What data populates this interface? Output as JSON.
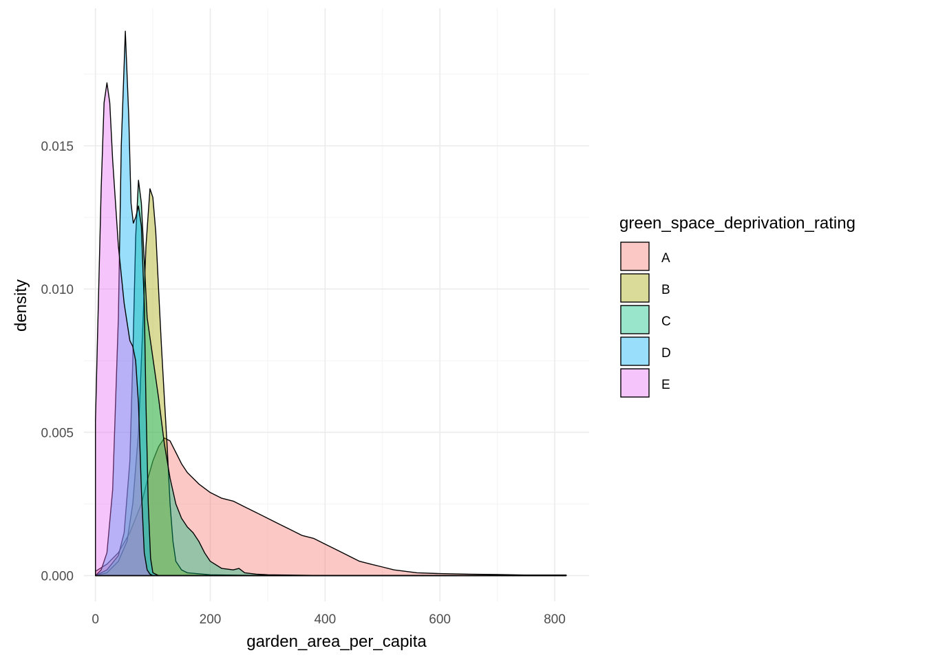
{
  "chart_data": {
    "type": "area",
    "subtype": "density",
    "title": "",
    "xlabel": "garden_area_per_capita",
    "ylabel": "density",
    "xlim": [
      -20,
      860
    ],
    "ylim": [
      -0.0009,
      0.0198
    ],
    "x_ticks": [
      0,
      200,
      400,
      600,
      800
    ],
    "x_tick_labels": [
      "0",
      "200",
      "400",
      "600",
      "800"
    ],
    "y_ticks": [
      0,
      0.005,
      0.01,
      0.015
    ],
    "y_tick_labels": [
      "0.000",
      "0.005",
      "0.010",
      "0.015"
    ],
    "grid": true,
    "legend": {
      "title": "green_space_deprivation_rating",
      "position": "right",
      "entries": [
        "A",
        "B",
        "C",
        "D",
        "E"
      ]
    },
    "series": [
      {
        "name": "A",
        "color": "#F8766D",
        "points": [
          [
            0,
            0.00015
          ],
          [
            20,
            0.0004
          ],
          [
            40,
            0.0008
          ],
          [
            60,
            0.0015
          ],
          [
            80,
            0.0025
          ],
          [
            90,
            0.0033
          ],
          [
            100,
            0.004
          ],
          [
            110,
            0.0045
          ],
          [
            120,
            0.0048
          ],
          [
            130,
            0.0047
          ],
          [
            140,
            0.0043
          ],
          [
            150,
            0.0039
          ],
          [
            160,
            0.0036
          ],
          [
            180,
            0.0032
          ],
          [
            200,
            0.0029
          ],
          [
            220,
            0.0027
          ],
          [
            240,
            0.0026
          ],
          [
            260,
            0.0024
          ],
          [
            280,
            0.0022
          ],
          [
            300,
            0.002
          ],
          [
            320,
            0.0018
          ],
          [
            340,
            0.0016
          ],
          [
            360,
            0.0014
          ],
          [
            380,
            0.0013
          ],
          [
            400,
            0.0011
          ],
          [
            420,
            0.0009
          ],
          [
            440,
            0.0007
          ],
          [
            460,
            0.0005
          ],
          [
            480,
            0.0004
          ],
          [
            500,
            0.0003
          ],
          [
            520,
            0.0002
          ],
          [
            540,
            0.00015
          ],
          [
            560,
            0.0001
          ],
          [
            600,
            7e-05
          ],
          [
            650,
            5e-05
          ],
          [
            700,
            4e-05
          ],
          [
            750,
            2e-05
          ],
          [
            800,
            2e-05
          ],
          [
            820,
            2e-05
          ]
        ]
      },
      {
        "name": "B",
        "color": "#A3A500",
        "points": [
          [
            0,
            0.0
          ],
          [
            20,
            0.0001
          ],
          [
            40,
            0.0005
          ],
          [
            55,
            0.0012
          ],
          [
            65,
            0.0025
          ],
          [
            75,
            0.005
          ],
          [
            82,
            0.0085
          ],
          [
            88,
            0.0115
          ],
          [
            95,
            0.0135
          ],
          [
            100,
            0.0132
          ],
          [
            105,
            0.012
          ],
          [
            110,
            0.01
          ],
          [
            115,
            0.008
          ],
          [
            120,
            0.0062
          ],
          [
            125,
            0.0045
          ],
          [
            130,
            0.0025
          ],
          [
            135,
            0.0012
          ],
          [
            140,
            0.0005
          ],
          [
            150,
            0.0002
          ],
          [
            160,
            0.0001
          ],
          [
            200,
            3e-05
          ],
          [
            300,
            0.0
          ],
          [
            400,
            0.0
          ],
          [
            600,
            0.0
          ],
          [
            820,
            0.0
          ]
        ]
      },
      {
        "name": "C",
        "color": "#00BF7D",
        "points": [
          [
            0,
            0.0
          ],
          [
            20,
            0.0002
          ],
          [
            40,
            0.0007
          ],
          [
            50,
            0.0015
          ],
          [
            60,
            0.004
          ],
          [
            65,
            0.0075
          ],
          [
            70,
            0.0118
          ],
          [
            75,
            0.0138
          ],
          [
            80,
            0.013
          ],
          [
            85,
            0.011
          ],
          [
            90,
            0.009
          ],
          [
            100,
            0.0076
          ],
          [
            110,
            0.0062
          ],
          [
            120,
            0.0046
          ],
          [
            130,
            0.0034
          ],
          [
            140,
            0.0025
          ],
          [
            150,
            0.002
          ],
          [
            160,
            0.0017
          ],
          [
            170,
            0.0015
          ],
          [
            180,
            0.0012
          ],
          [
            190,
            0.0008
          ],
          [
            200,
            0.0005
          ],
          [
            220,
            0.00025
          ],
          [
            240,
            0.0002
          ],
          [
            250,
            0.00025
          ],
          [
            260,
            0.0001
          ],
          [
            280,
            5e-05
          ],
          [
            300,
            3e-05
          ],
          [
            400,
            0.0
          ],
          [
            600,
            0.0
          ],
          [
            820,
            0.0
          ]
        ]
      },
      {
        "name": "D",
        "color": "#00B0F6",
        "points": [
          [
            0,
            0.0
          ],
          [
            10,
            0.0002
          ],
          [
            20,
            0.0008
          ],
          [
            30,
            0.003
          ],
          [
            40,
            0.009
          ],
          [
            45,
            0.015
          ],
          [
            52,
            0.019
          ],
          [
            58,
            0.016
          ],
          [
            62,
            0.013
          ],
          [
            66,
            0.0123
          ],
          [
            70,
            0.0125
          ],
          [
            75,
            0.0129
          ],
          [
            80,
            0.0122
          ],
          [
            85,
            0.0095
          ],
          [
            88,
            0.006
          ],
          [
            92,
            0.0025
          ],
          [
            96,
            0.0006
          ],
          [
            100,
            0.0001
          ],
          [
            110,
            0.0
          ],
          [
            200,
            0.0
          ],
          [
            400,
            0.0
          ],
          [
            600,
            0.0
          ],
          [
            820,
            0.0
          ]
        ]
      },
      {
        "name": "E",
        "color": "#E76BF3",
        "points": [
          [
            0,
            0.0054
          ],
          [
            5,
            0.0095
          ],
          [
            10,
            0.0135
          ],
          [
            15,
            0.0165
          ],
          [
            20,
            0.0172
          ],
          [
            25,
            0.0165
          ],
          [
            30,
            0.0145
          ],
          [
            40,
            0.0115
          ],
          [
            50,
            0.0095
          ],
          [
            60,
            0.0082
          ],
          [
            65,
            0.008
          ],
          [
            70,
            0.0075
          ],
          [
            75,
            0.006
          ],
          [
            80,
            0.003
          ],
          [
            85,
            0.0008
          ],
          [
            90,
            0.0002
          ],
          [
            95,
            5e-05
          ],
          [
            100,
            0.0
          ],
          [
            200,
            0.0
          ],
          [
            400,
            0.0
          ],
          [
            600,
            0.0
          ],
          [
            820,
            0.0
          ]
        ]
      }
    ]
  }
}
